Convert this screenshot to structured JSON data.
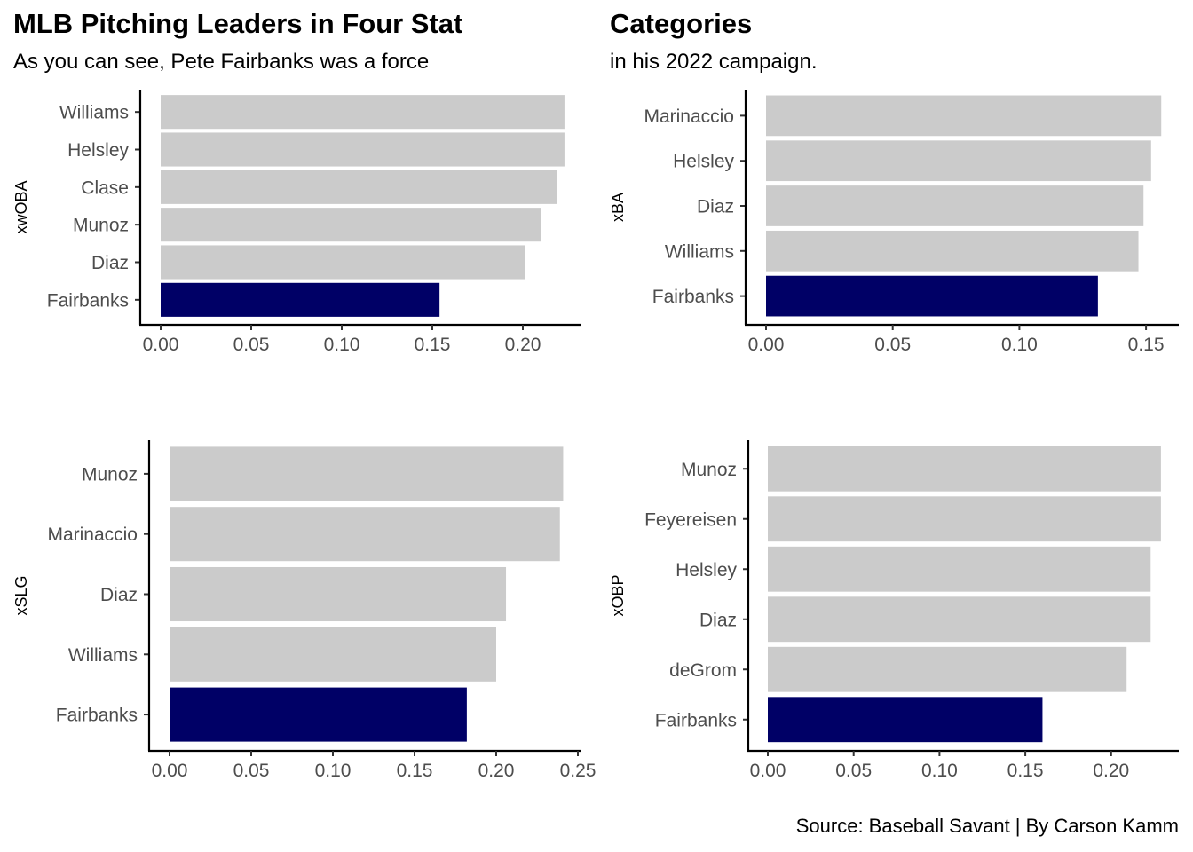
{
  "title_part1": "MLB Pitching Leaders in Four Stat",
  "title_part2": "Categories",
  "subtitle_part1": "As you can see, Pete Fairbanks was a force",
  "subtitle_part2": "in his 2022 campaign.",
  "caption": "Source: Baseball Savant | By Carson Kamm",
  "colors": {
    "highlight": "#000066",
    "other": "#cbcbcb",
    "axis": "#000000",
    "tick_text": "#4d4d4d"
  },
  "chart_data": [
    {
      "type": "bar",
      "orientation": "horizontal",
      "ylabel": "xwOBA",
      "xlabel": "",
      "categories": [
        "Williams",
        "Helsley",
        "Clase",
        "Munoz",
        "Diaz",
        "Fairbanks"
      ],
      "values": [
        0.223,
        0.223,
        0.219,
        0.21,
        0.201,
        0.154
      ],
      "highlight": "Fairbanks",
      "xlim": [
        0,
        0.23
      ],
      "xticks": [
        "0.00",
        "0.05",
        "0.10",
        "0.15",
        "0.20"
      ]
    },
    {
      "type": "bar",
      "orientation": "horizontal",
      "ylabel": "xBA",
      "xlabel": "",
      "categories": [
        "Marinaccio",
        "Helsley",
        "Diaz",
        "Williams",
        "Fairbanks"
      ],
      "values": [
        0.156,
        0.152,
        0.149,
        0.147,
        0.131
      ],
      "highlight": "Fairbanks",
      "xlim": [
        0,
        0.16
      ],
      "xticks": [
        "0.00",
        "0.05",
        "0.10",
        "0.15"
      ]
    },
    {
      "type": "bar",
      "orientation": "horizontal",
      "ylabel": "xSLG",
      "xlabel": "",
      "categories": [
        "Munoz",
        "Marinaccio",
        "Diaz",
        "Williams",
        "Fairbanks"
      ],
      "values": [
        0.241,
        0.239,
        0.206,
        0.2,
        0.182
      ],
      "highlight": "Fairbanks",
      "xlim": [
        0,
        0.25
      ],
      "xticks": [
        "0.00",
        "0.05",
        "0.10",
        "0.15",
        "0.20",
        "0.25"
      ]
    },
    {
      "type": "bar",
      "orientation": "horizontal",
      "ylabel": "xOBP",
      "xlabel": "",
      "categories": [
        "Munoz",
        "Feyereisen",
        "Helsley",
        "Diaz",
        "deGrom",
        "Fairbanks"
      ],
      "values": [
        0.229,
        0.229,
        0.223,
        0.223,
        0.209,
        0.16
      ],
      "highlight": "Fairbanks",
      "xlim": [
        0,
        0.23
      ],
      "xticks": [
        "0.00",
        "0.05",
        "0.10",
        "0.15",
        "0.20"
      ]
    }
  ]
}
